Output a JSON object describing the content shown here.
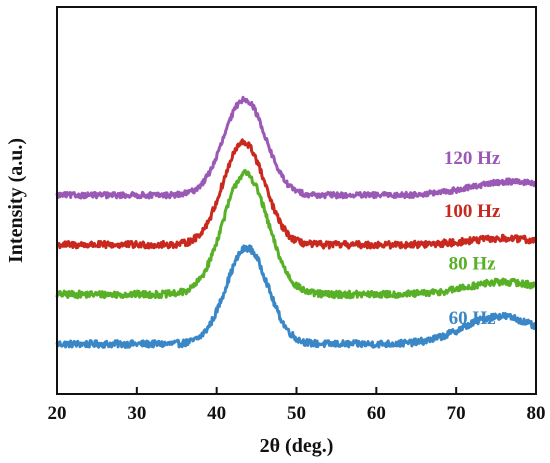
{
  "chart_data": {
    "type": "line",
    "xlabel": "2θ (deg.)",
    "ylabel": "Intensity (a.u.)",
    "xlim": [
      20,
      80
    ],
    "x_ticks": [
      "20",
      "30",
      "40",
      "50",
      "60",
      "70",
      "80"
    ],
    "y_ticks": [],
    "grid": false,
    "legend": "inline labels at right of each curve",
    "series": [
      {
        "name": "60 Hz",
        "color": "#3a87c8",
        "offset": 0.0,
        "baseline": 0.0,
        "noise": 0.055,
        "peak": {
          "center": 43.8,
          "height": 1.55,
          "width": 2.6
        },
        "shoulder": {
          "center": 75.5,
          "height": 0.45,
          "width": 4.5
        }
      },
      {
        "name": "80 Hz",
        "color": "#58b026",
        "offset": 0.8,
        "baseline": 0.0,
        "noise": 0.055,
        "peak": {
          "center": 43.6,
          "height": 1.95,
          "width": 2.8
        },
        "shoulder": {
          "center": 76.0,
          "height": 0.2,
          "width": 4.5
        }
      },
      {
        "name": "100 Hz",
        "color": "#c8281e",
        "offset": 1.6,
        "baseline": 0.0,
        "noise": 0.055,
        "peak": {
          "center": 43.4,
          "height": 1.65,
          "width": 2.6
        },
        "shoulder": {
          "center": 76.0,
          "height": 0.1,
          "width": 4.5
        }
      },
      {
        "name": "120 Hz",
        "color": "#9b59b6",
        "offset": 2.4,
        "baseline": 0.0,
        "noise": 0.045,
        "peak": {
          "center": 43.5,
          "height": 1.55,
          "width": 2.6
        },
        "shoulder": {
          "center": 77.0,
          "height": 0.22,
          "width": 5.0
        }
      }
    ]
  }
}
